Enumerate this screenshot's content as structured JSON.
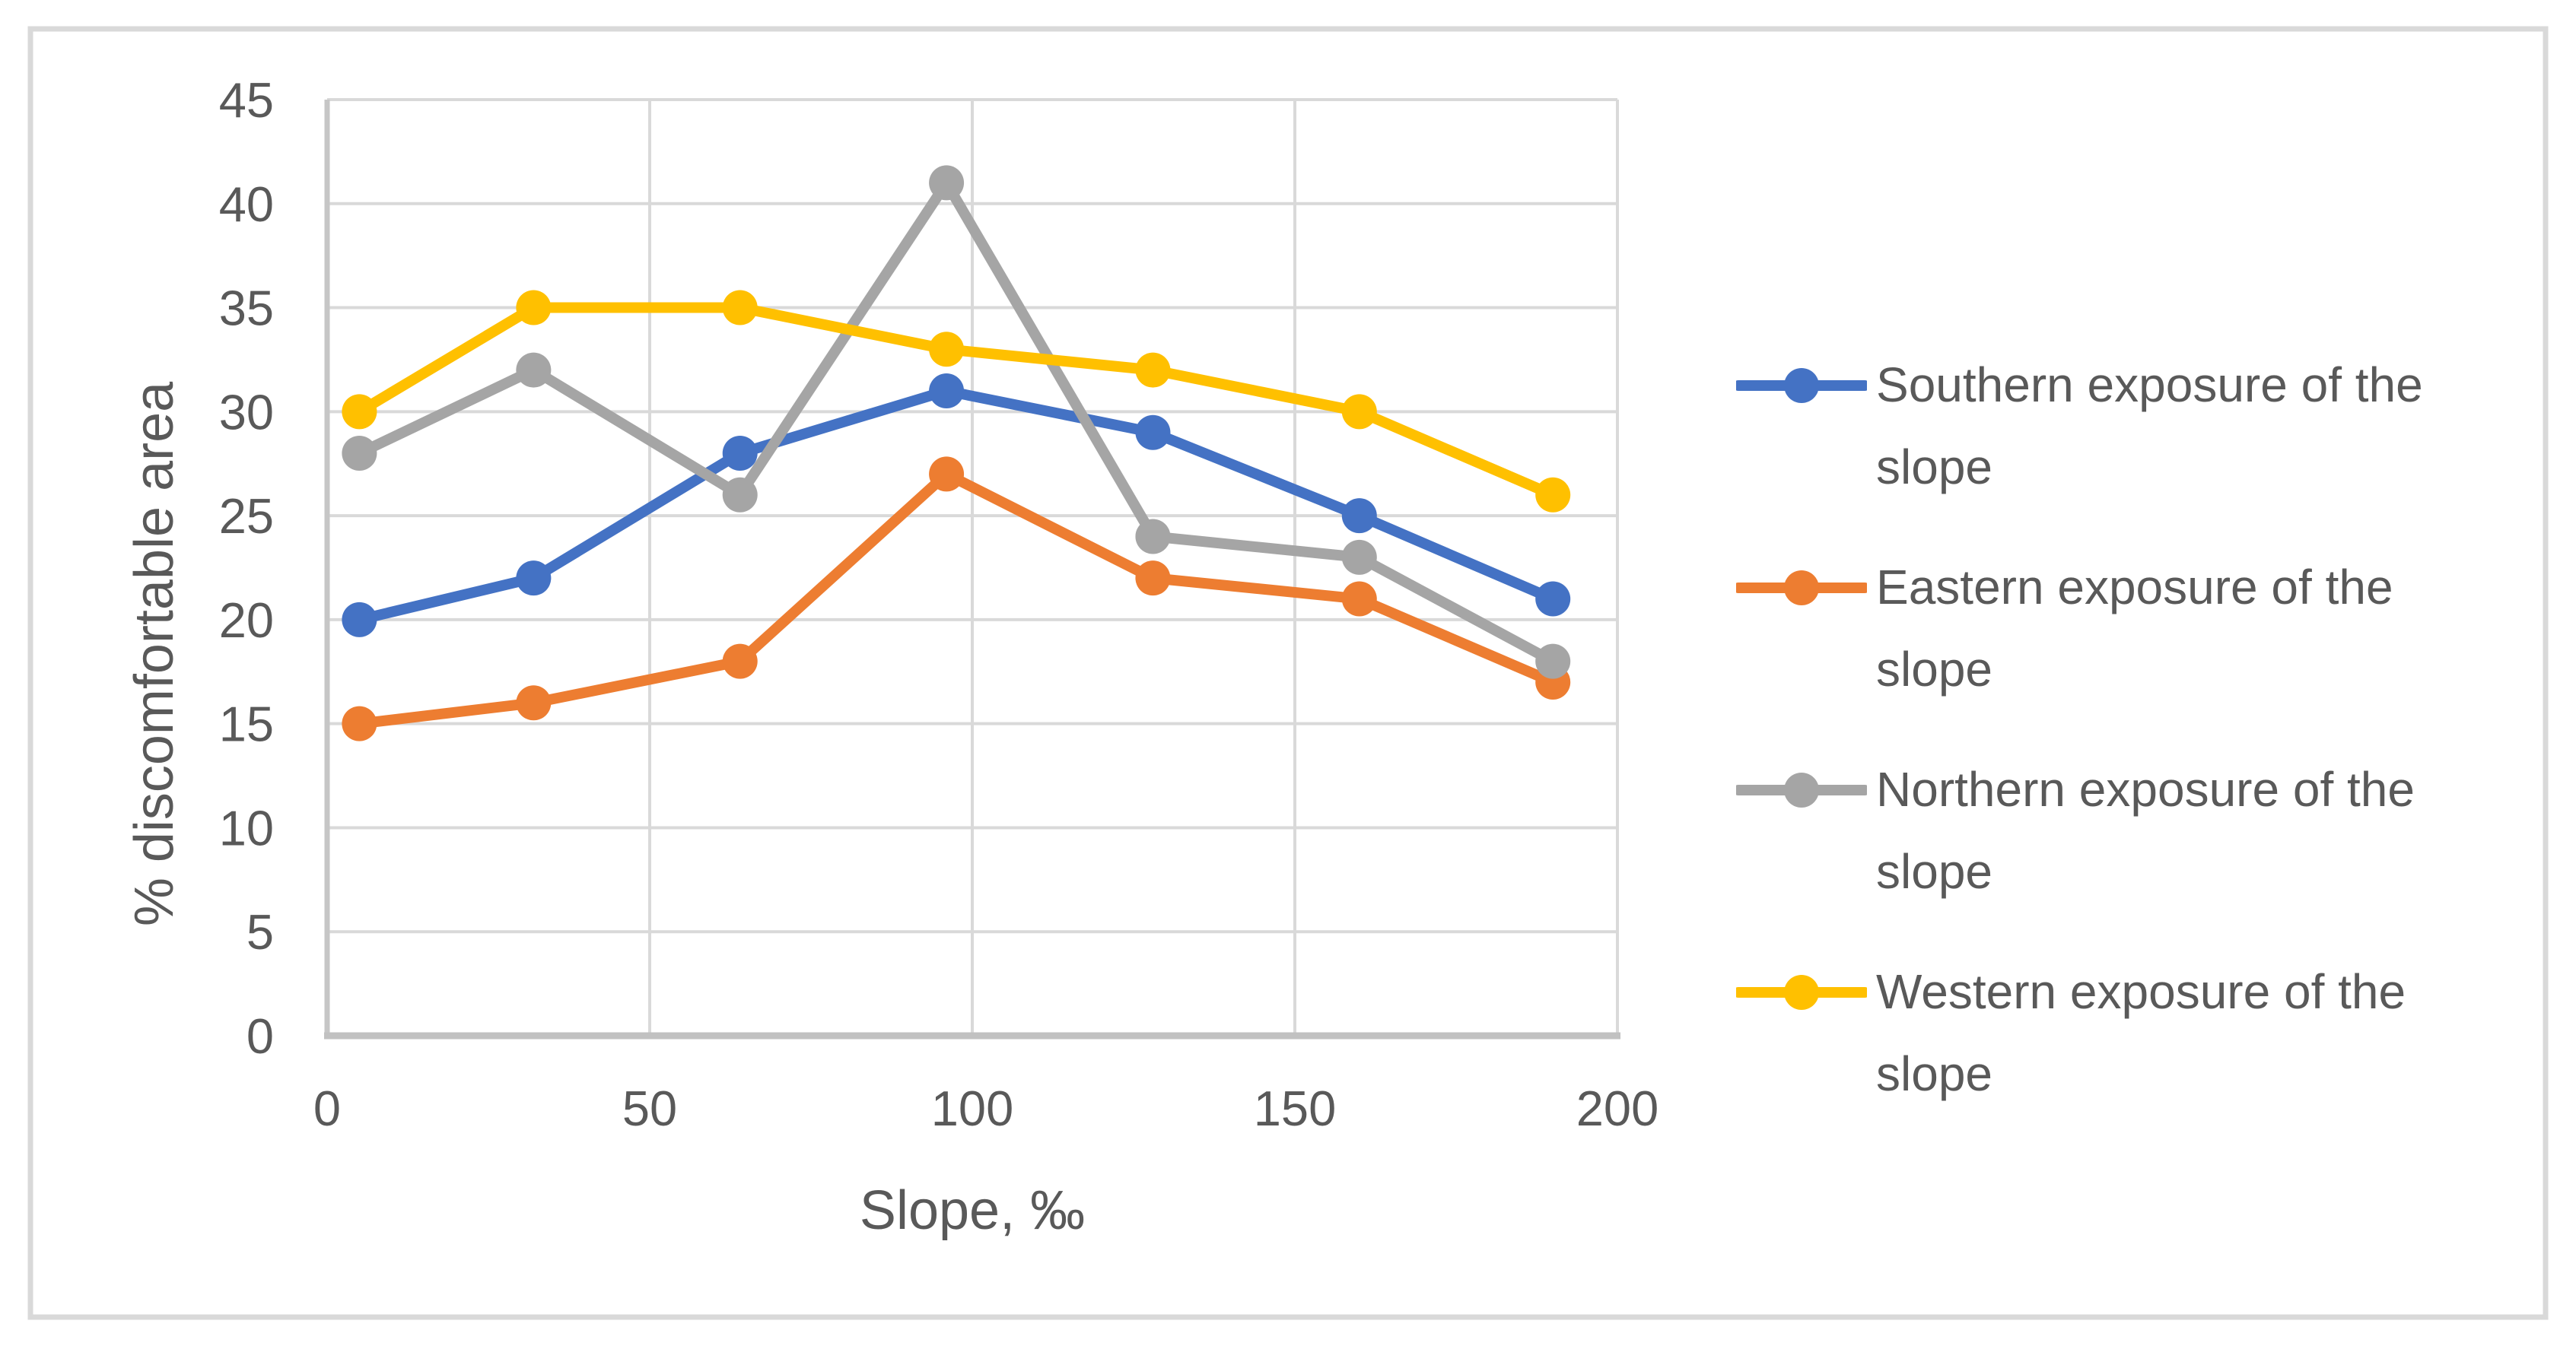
{
  "figure": {
    "background": "#FFFFFF",
    "border_color": "#D9D9D9",
    "text_color": "#595959",
    "gridline_color": "#D9D9D9",
    "y_axis_line_color": "#C6C6C6",
    "x_axis_line_color": "#C1C1C1"
  },
  "chart_data": {
    "type": "line",
    "title": "",
    "xlabel": "Slope, ‰",
    "ylabel": "% discomfortable area",
    "x": [
      5,
      32,
      64,
      96,
      128,
      160,
      190
    ],
    "series": [
      {
        "name": "Southern exposure of the slope",
        "color": "#4472C4",
        "values": [
          20,
          22,
          28,
          31,
          29,
          25,
          21
        ]
      },
      {
        "name": "Eastern exposure of the slope",
        "color": "#ED7D31",
        "values": [
          15,
          16,
          18,
          27,
          22,
          21,
          17
        ]
      },
      {
        "name": "Northern exposure of the slope",
        "color": "#A5A5A5",
        "values": [
          28,
          32,
          26,
          41,
          24,
          23,
          18
        ]
      },
      {
        "name": "Western exposure of the slope",
        "color": "#FFC000",
        "values": [
          30,
          35,
          35,
          33,
          32,
          30,
          26
        ]
      }
    ],
    "xlim": [
      0,
      200
    ],
    "ylim": [
      0,
      45
    ],
    "x_ticks": [
      0,
      50,
      100,
      150,
      200
    ],
    "y_ticks": [
      0,
      5,
      10,
      15,
      20,
      25,
      30,
      35,
      40,
      45
    ],
    "grid": true,
    "legend_position": "right",
    "marker": "circle"
  }
}
